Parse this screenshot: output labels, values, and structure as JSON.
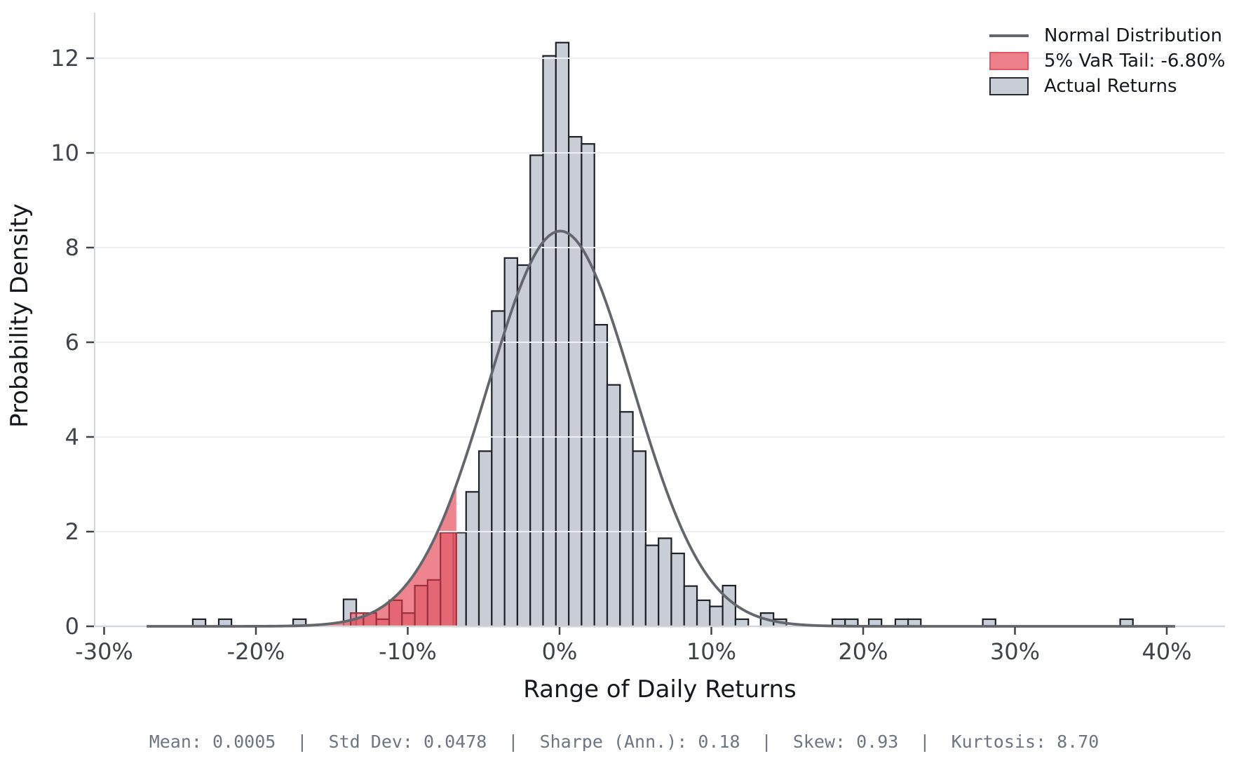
{
  "chart_data": {
    "type": "histogram",
    "title": "",
    "xlabel": "Range of Daily Returns",
    "ylabel": "Probability Density",
    "xlim_pct": [
      -30.6,
      43.8
    ],
    "ylim": [
      0,
      12.96
    ],
    "grid": "horizontal",
    "x_ticks": [
      {
        "value": -30,
        "label": "-30%"
      },
      {
        "value": -20,
        "label": "-20%"
      },
      {
        "value": -10,
        "label": "-10%"
      },
      {
        "value": 0,
        "label": "0%"
      },
      {
        "value": 10,
        "label": "10%"
      },
      {
        "value": 20,
        "label": "20%"
      },
      {
        "value": 30,
        "label": "30%"
      },
      {
        "value": 40,
        "label": "40%"
      }
    ],
    "y_ticks": [
      {
        "value": 0,
        "label": "0"
      },
      {
        "value": 2,
        "label": "2"
      },
      {
        "value": 4,
        "label": "4"
      },
      {
        "value": 6,
        "label": "6"
      },
      {
        "value": 8,
        "label": "8"
      },
      {
        "value": 10,
        "label": "10"
      },
      {
        "value": 12,
        "label": "12"
      }
    ],
    "bars_note": "each bar = [left_edge_pct, width_pct, density]",
    "bars": [
      [
        -24.16,
        0.84,
        0.15
      ],
      [
        -22.45,
        0.84,
        0.15
      ],
      [
        -17.55,
        0.84,
        0.15
      ],
      [
        -14.23,
        0.84,
        0.57
      ],
      [
        -7.0,
        0.845,
        1.98
      ],
      [
        -6.155,
        0.845,
        2.84
      ],
      [
        -5.31,
        0.845,
        3.7
      ],
      [
        -4.465,
        0.845,
        6.66
      ],
      [
        -3.62,
        0.845,
        7.78
      ],
      [
        -2.775,
        0.845,
        7.63
      ],
      [
        -1.93,
        0.845,
        9.95
      ],
      [
        -1.085,
        0.845,
        12.05
      ],
      [
        -0.24,
        0.845,
        12.33
      ],
      [
        0.605,
        0.845,
        10.34
      ],
      [
        1.45,
        0.845,
        10.19
      ],
      [
        2.295,
        0.845,
        6.37
      ],
      [
        3.14,
        0.845,
        5.1
      ],
      [
        3.985,
        0.845,
        4.53
      ],
      [
        4.83,
        0.845,
        3.7
      ],
      [
        5.675,
        0.845,
        1.71
      ],
      [
        6.52,
        0.845,
        1.86
      ],
      [
        7.365,
        0.845,
        1.54
      ],
      [
        8.21,
        0.845,
        0.85
      ],
      [
        9.055,
        0.845,
        0.55
      ],
      [
        9.9,
        0.845,
        0.42
      ],
      [
        10.745,
        0.845,
        0.86
      ],
      [
        11.59,
        0.845,
        0.15
      ],
      [
        13.25,
        0.845,
        0.28
      ],
      [
        14.1,
        0.845,
        0.15
      ],
      [
        17.97,
        0.84,
        0.15
      ],
      [
        18.81,
        0.84,
        0.15
      ],
      [
        20.37,
        0.84,
        0.15
      ],
      [
        22.12,
        0.84,
        0.15
      ],
      [
        22.96,
        0.84,
        0.15
      ],
      [
        27.88,
        0.84,
        0.15
      ],
      [
        36.93,
        0.84,
        0.15
      ]
    ],
    "tail_bars": [
      [
        -13.76,
        0.845,
        0.28
      ],
      [
        -12.915,
        0.845,
        0.28
      ],
      [
        -12.07,
        0.845,
        0.15
      ],
      [
        -11.225,
        0.845,
        0.55
      ],
      [
        -10.38,
        0.845,
        0.28
      ],
      [
        -9.535,
        0.845,
        0.86
      ],
      [
        -8.69,
        0.845,
        0.98
      ],
      [
        -7.845,
        1.045,
        1.98
      ]
    ],
    "var_threshold_pct": -6.8,
    "normal_curve": {
      "mean_pct": 0.05,
      "std_pct": 4.78,
      "peak_density": 8.35,
      "x_start_pct": -27.2,
      "x_end_pct": 40.7
    },
    "legend": [
      {
        "label": "Normal Distribution",
        "swatch": "line"
      },
      {
        "label": "5% VaR Tail: -6.80%",
        "swatch": "red-patch"
      },
      {
        "label": "Actual Returns",
        "swatch": "gray-patch"
      }
    ],
    "stats_line": "Mean: 0.0005  |  Std Dev: 0.0478  |  Sharpe (Ann.): 0.18  |  Skew: 0.93  |  Kurtosis: 8.70",
    "colors": {
      "bar_fill": "#c9cdd5",
      "bar_edge": "#1e2126",
      "tail_fill": "#e9626e",
      "tail_bar_fill": "#dc4a57",
      "tail_bar_edge": "#9c303c",
      "curve": "#63666c",
      "grid": "#edeff2",
      "axis_line": "#d4d7dc",
      "tick_text": "#3f444a",
      "label_text": "#15181c",
      "stats_text": "#6e7681"
    }
  }
}
